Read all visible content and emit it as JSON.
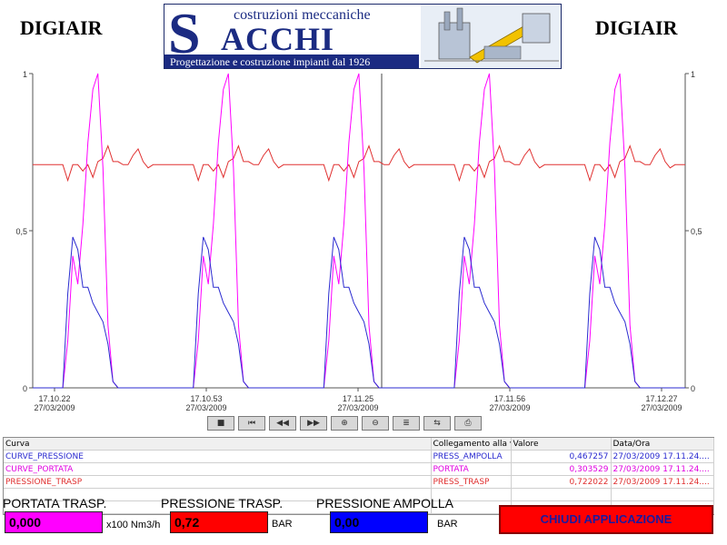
{
  "header": {
    "brand_left": "DIGIAIR",
    "brand_right": "DIGIAIR",
    "logo": {
      "tagline_top": "costruzioni meccaniche",
      "initial": "S",
      "name": "ACCHI",
      "tagline_bottom": "Progettazione e costruzione impianti dal 1926"
    }
  },
  "chart_data": {
    "type": "line",
    "ylim": [
      0,
      1
    ],
    "y_ticks_left": [
      "1",
      "0,5",
      "0"
    ],
    "y_ticks_right": [
      "1",
      "0,5",
      "0"
    ],
    "x_ticks": [
      {
        "time": "17.10.22",
        "date": "27/03/2009"
      },
      {
        "time": "17.10.53",
        "date": "27/03/2009"
      },
      {
        "time": "17.11.25",
        "date": "27/03/2009"
      },
      {
        "time": "17.11.56",
        "date": "27/03/2009"
      },
      {
        "time": "17.12.27",
        "date": "27/03/2009"
      }
    ],
    "cursor_time": "17.11.25",
    "series": [
      {
        "name": "PRESSIONE_TRASP",
        "color": "#e03030",
        "cycle_values": [
          0.71,
          0.71,
          0.71,
          0.66,
          0.71,
          0.71,
          0.69,
          0.71,
          0.67,
          0.72,
          0.73,
          0.77,
          0.72,
          0.72,
          0.71,
          0.71,
          0.74,
          0.76,
          0.72,
          0.7,
          0.71,
          0.71
        ]
      },
      {
        "name": "CURVE_PORTATA",
        "color": "#ff00ff",
        "cycle_values": [
          0,
          0,
          0,
          0.15,
          0.42,
          0.33,
          0.52,
          0.78,
          0.95,
          1.0,
          0.7,
          0.2,
          0.02,
          0,
          0,
          0,
          0,
          0,
          0,
          0,
          0,
          0
        ]
      },
      {
        "name": "CURVE_PRESSIONE",
        "color": "#2b2bd0",
        "cycle_values": [
          0,
          0,
          0,
          0.3,
          0.48,
          0.44,
          0.32,
          0.32,
          0.27,
          0.24,
          0.21,
          0.14,
          0.02,
          0,
          0,
          0,
          0,
          0,
          0,
          0,
          0,
          0
        ]
      }
    ]
  },
  "toolbar": {
    "buttons": [
      {
        "name": "stop-icon",
        "glyph": "■"
      },
      {
        "name": "first-icon",
        "glyph": "⏮"
      },
      {
        "name": "rewind-icon",
        "glyph": "◀◀"
      },
      {
        "name": "forward-icon",
        "glyph": "▶▶"
      },
      {
        "name": "zoom-in-icon",
        "glyph": "⊕"
      },
      {
        "name": "zoom-out-icon",
        "glyph": "⊖"
      },
      {
        "name": "config-icon",
        "glyph": "≣"
      },
      {
        "name": "export-icon",
        "glyph": "⇆"
      },
      {
        "name": "print-icon",
        "glyph": "⎙"
      }
    ]
  },
  "legend": {
    "headers": [
      "Curva",
      "Collegamento alla v",
      "Valore",
      "Data/Ora"
    ],
    "rows": [
      {
        "curva": "CURVE_PRESSIONE",
        "collegamento": "PRESS_AMPOLLA",
        "valore": "0,467257",
        "data": "27/03/2009 17.11.24....",
        "color": "#2b2bd0"
      },
      {
        "curva": "CURVE_PORTATA",
        "collegamento": "PORTATA",
        "valore": "0,303529",
        "data": "27/03/2009 17.11.24....",
        "color": "#e000e0"
      },
      {
        "curva": "PRESSIONE_TRASP",
        "collegamento": "PRESS_TRASP",
        "valore": "0,722022",
        "data": "27/03/2009 17.11.24....",
        "color": "#e03030"
      }
    ]
  },
  "bottom": {
    "portata": {
      "label": "PORTATA TRASP.",
      "value": "0,000",
      "unit": "x100 Nm3/h",
      "color": "#ff00ff"
    },
    "pressione_trasp": {
      "label": "PRESSIONE TRASP.",
      "value": "0,72",
      "unit": "BAR",
      "color": "#ff0000"
    },
    "pressione_ampolla": {
      "label": "PRESSIONE AMPOLLA",
      "value": "0,00",
      "unit": "BAR",
      "color": "#0000ff"
    },
    "close_button": "CHIUDI APPLICAZIONE"
  }
}
